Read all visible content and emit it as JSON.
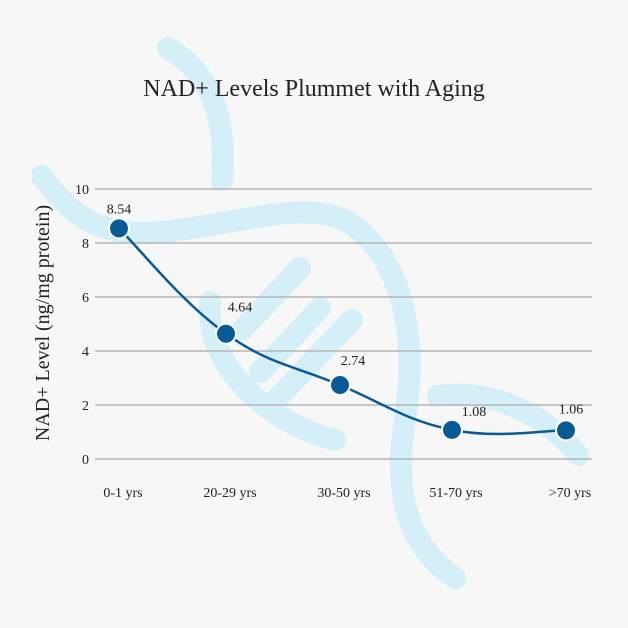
{
  "chart_data": {
    "type": "line",
    "title": "NAD+ Levels Plummet with Aging",
    "xlabel": "",
    "ylabel": "NAD+ Level (ng/mg protein)",
    "categories": [
      "0-1 yrs",
      "20-29 yrs",
      "30-50 yrs",
      "51-70 yrs",
      ">70 yrs"
    ],
    "series": [
      {
        "name": "NAD+ Level",
        "values": [
          8.54,
          4.64,
          2.74,
          1.08,
          1.06
        ],
        "labels": [
          "8.54",
          "4.64",
          "2.74",
          "1.08",
          "1.06"
        ]
      }
    ],
    "ylim": [
      0,
      10
    ],
    "yticks": [
      "0",
      "2",
      "4",
      "6",
      "8",
      "10"
    ],
    "grid": true,
    "colors": {
      "line": "#0a5a96",
      "grid": "#b5b5b5",
      "watermark": "#d4eff7",
      "background": "#f7f7f7"
    }
  }
}
